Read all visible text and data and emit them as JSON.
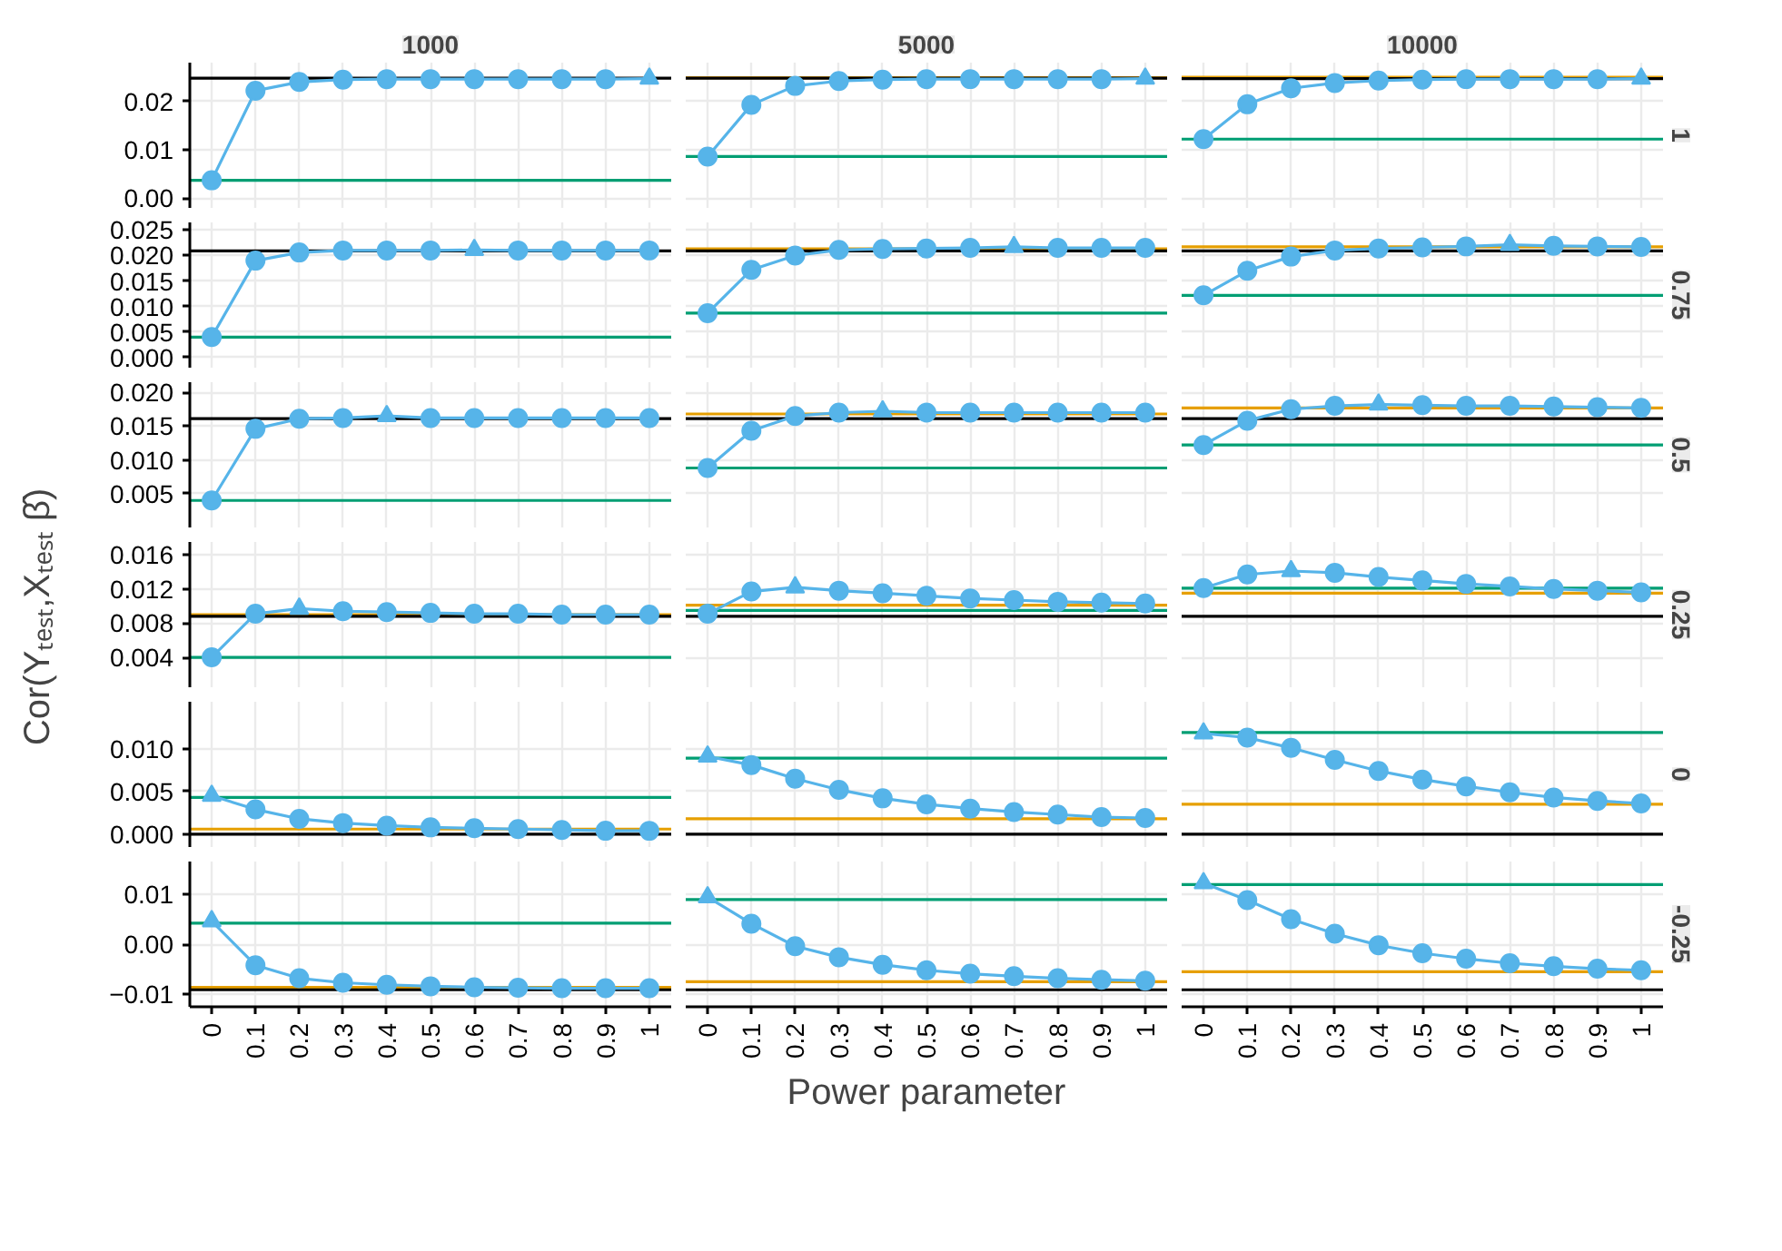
{
  "chart_data": [
    {
      "type": "line",
      "title": "1000",
      "x": [
        0,
        0.1,
        0.2,
        0.3,
        0.4,
        0.5,
        0.6,
        0.7,
        0.8,
        0.9,
        1
      ],
      "xlim": [
        -0.05,
        1.05
      ],
      "xticks": [
        0,
        0.1,
        0.2,
        0.3,
        0.4,
        0.5,
        0.6,
        0.7,
        0.8,
        0.9,
        1
      ],
      "ylim": [
        -0.002,
        0.028
      ],
      "yticks": [
        {
          "value": 0,
          "label": "0.00"
        },
        {
          "value": 0.01,
          "label": "0.01"
        },
        {
          "value": 0.02,
          "label": "0.02"
        }
      ],
      "grid": true,
      "tick_labels": "y",
      "series": [
        {
          "type": "line",
          "color": "#56b4e9",
          "values": [
            0.0037,
            0.0222,
            0.024,
            0.0245,
            0.0246,
            0.0246,
            0.0246,
            0.0246,
            0.0246,
            0.0246,
            0.0247
          ]
        },
        {
          "type": "scatter",
          "marker": "circle",
          "color": "#56b4e9",
          "values": [
            0.0037,
            0.0222,
            0.024,
            0.0245,
            0.0246,
            0.0246,
            0.0246,
            0.0246,
            0.0246,
            0.0246,
            null
          ]
        },
        {
          "type": "scatter",
          "marker": "triangle",
          "color": "#56b4e9",
          "x": [
            1
          ],
          "values": [
            0.0247
          ]
        }
      ],
      "ref_lines": [
        {
          "axis": "y",
          "value": 0.0248,
          "color": "#000000"
        },
        {
          "axis": "y",
          "value": 0.0037,
          "color": "#009e73"
        }
      ]
    },
    {
      "type": "line",
      "title": "5000",
      "x": [
        0,
        0.1,
        0.2,
        0.3,
        0.4,
        0.5,
        0.6,
        0.7,
        0.8,
        0.9,
        1
      ],
      "xlim": [
        -0.05,
        1.05
      ],
      "xticks": [
        0,
        0.1,
        0.2,
        0.3,
        0.4,
        0.5,
        0.6,
        0.7,
        0.8,
        0.9,
        1
      ],
      "ylim": [
        -0.002,
        0.028
      ],
      "yticks": [
        0,
        0.01,
        0.02
      ],
      "grid": true,
      "tick_labels": false,
      "series": [
        {
          "type": "line",
          "color": "#56b4e9",
          "values": [
            0.0086,
            0.0193,
            0.0232,
            0.0242,
            0.0245,
            0.0246,
            0.0246,
            0.0246,
            0.0246,
            0.0246,
            0.0247
          ]
        },
        {
          "type": "scatter",
          "marker": "circle",
          "color": "#56b4e9",
          "values": [
            0.0086,
            0.0193,
            0.0232,
            0.0242,
            0.0245,
            0.0246,
            0.0246,
            0.0246,
            0.0246,
            0.0246,
            null
          ]
        },
        {
          "type": "scatter",
          "marker": "triangle",
          "color": "#56b4e9",
          "x": [
            1
          ],
          "values": [
            0.0247
          ]
        }
      ],
      "ref_lines": [
        {
          "axis": "y",
          "value": 0.0249,
          "color": "#e69f00"
        },
        {
          "axis": "y",
          "value": 0.0248,
          "color": "#000000"
        },
        {
          "axis": "y",
          "value": 0.0086,
          "color": "#009e73"
        }
      ]
    },
    {
      "type": "line",
      "title": "10000",
      "y2label": "1",
      "x": [
        0,
        0.1,
        0.2,
        0.3,
        0.4,
        0.5,
        0.6,
        0.7,
        0.8,
        0.9,
        1
      ],
      "xlim": [
        -0.05,
        1.05
      ],
      "xticks": [
        0,
        0.1,
        0.2,
        0.3,
        0.4,
        0.5,
        0.6,
        0.7,
        0.8,
        0.9,
        1
      ],
      "ylim": [
        -0.002,
        0.028
      ],
      "yticks": [
        0,
        0.01,
        0.02
      ],
      "grid": true,
      "tick_labels": false,
      "series": [
        {
          "type": "line",
          "color": "#56b4e9",
          "values": [
            0.0122,
            0.0194,
            0.0227,
            0.0238,
            0.0243,
            0.0245,
            0.0246,
            0.0246,
            0.0246,
            0.0246,
            0.0247
          ]
        },
        {
          "type": "scatter",
          "marker": "circle",
          "color": "#56b4e9",
          "values": [
            0.0122,
            0.0194,
            0.0227,
            0.0238,
            0.0243,
            0.0245,
            0.0246,
            0.0246,
            0.0246,
            0.0246,
            null
          ]
        },
        {
          "type": "scatter",
          "marker": "triangle",
          "color": "#56b4e9",
          "x": [
            1
          ],
          "values": [
            0.0247
          ]
        }
      ],
      "ref_lines": [
        {
          "axis": "y",
          "value": 0.025,
          "color": "#e69f00"
        },
        {
          "axis": "y",
          "value": 0.0247,
          "color": "#000000"
        },
        {
          "axis": "y",
          "value": 0.0122,
          "color": "#009e73"
        }
      ]
    },
    {
      "type": "line",
      "x": [
        0,
        0.1,
        0.2,
        0.3,
        0.4,
        0.5,
        0.6,
        0.7,
        0.8,
        0.9,
        1
      ],
      "xlim": [
        -0.05,
        1.05
      ],
      "xticks": [
        0,
        0.1,
        0.2,
        0.3,
        0.4,
        0.5,
        0.6,
        0.7,
        0.8,
        0.9,
        1
      ],
      "ylim": [
        -0.002,
        0.0265
      ],
      "yticks": [
        {
          "value": 0,
          "label": "0.000"
        },
        0.005,
        {
          "value": 0.01,
          "label": "0.010"
        },
        0.015,
        {
          "value": 0.02,
          "label": "0.020"
        },
        0.025
      ],
      "grid": true,
      "tick_labels": "y",
      "series": [
        {
          "type": "line",
          "color": "#56b4e9",
          "values": [
            0.004,
            0.019,
            0.0206,
            0.021,
            0.021,
            0.021,
            0.0211,
            0.021,
            0.021,
            0.021,
            0.021
          ]
        },
        {
          "type": "scatter",
          "marker": "circle",
          "color": "#56b4e9",
          "values": [
            0.004,
            0.019,
            0.0206,
            0.021,
            0.021,
            0.021,
            null,
            0.021,
            0.021,
            0.021,
            0.021
          ]
        },
        {
          "type": "scatter",
          "marker": "triangle",
          "color": "#56b4e9",
          "x": [
            0.6
          ],
          "values": [
            0.0211
          ]
        }
      ],
      "ref_lines": [
        {
          "axis": "y",
          "value": 0.0209,
          "color": "#000000"
        },
        {
          "axis": "y",
          "value": 0.004,
          "color": "#009e73"
        }
      ]
    },
    {
      "type": "line",
      "x": [
        0,
        0.1,
        0.2,
        0.3,
        0.4,
        0.5,
        0.6,
        0.7,
        0.8,
        0.9,
        1
      ],
      "xlim": [
        -0.05,
        1.05
      ],
      "xticks": [
        0,
        0.1,
        0.2,
        0.3,
        0.4,
        0.5,
        0.6,
        0.7,
        0.8,
        0.9,
        1
      ],
      "ylim": [
        -0.002,
        0.0265
      ],
      "yticks": [
        0,
        0.005,
        0.01,
        0.015,
        0.02,
        0.025
      ],
      "grid": true,
      "tick_labels": false,
      "series": [
        {
          "type": "line",
          "color": "#56b4e9",
          "values": [
            0.0087,
            0.0172,
            0.02,
            0.0211,
            0.0213,
            0.0214,
            0.0215,
            0.0217,
            0.0215,
            0.0215,
            0.0215
          ]
        },
        {
          "type": "scatter",
          "marker": "circle",
          "color": "#56b4e9",
          "values": [
            0.0087,
            0.0172,
            0.02,
            0.0211,
            0.0213,
            0.0214,
            0.0215,
            null,
            0.0215,
            0.0215,
            0.0215
          ]
        },
        {
          "type": "scatter",
          "marker": "triangle",
          "color": "#56b4e9",
          "x": [
            0.7
          ],
          "values": [
            0.0217
          ]
        }
      ],
      "ref_lines": [
        {
          "axis": "y",
          "value": 0.0213,
          "color": "#e69f00"
        },
        {
          "axis": "y",
          "value": 0.0209,
          "color": "#000000"
        },
        {
          "axis": "y",
          "value": 0.0087,
          "color": "#009e73"
        }
      ]
    },
    {
      "type": "line",
      "y2label": "0.75",
      "x": [
        0,
        0.1,
        0.2,
        0.3,
        0.4,
        0.5,
        0.6,
        0.7,
        0.8,
        0.9,
        1
      ],
      "xlim": [
        -0.05,
        1.05
      ],
      "xticks": [
        0,
        0.1,
        0.2,
        0.3,
        0.4,
        0.5,
        0.6,
        0.7,
        0.8,
        0.9,
        1
      ],
      "ylim": [
        -0.002,
        0.0265
      ],
      "yticks": [
        0,
        0.005,
        0.01,
        0.015,
        0.02,
        0.025
      ],
      "grid": true,
      "tick_labels": false,
      "series": [
        {
          "type": "line",
          "color": "#56b4e9",
          "values": [
            0.0122,
            0.017,
            0.0198,
            0.021,
            0.0214,
            0.0216,
            0.0218,
            0.0221,
            0.0219,
            0.0218,
            0.0217
          ]
        },
        {
          "type": "scatter",
          "marker": "circle",
          "color": "#56b4e9",
          "values": [
            0.0122,
            0.017,
            0.0198,
            0.021,
            0.0214,
            0.0216,
            0.0218,
            null,
            0.0219,
            0.0218,
            0.0217
          ]
        },
        {
          "type": "scatter",
          "marker": "triangle",
          "color": "#56b4e9",
          "x": [
            0.7
          ],
          "values": [
            0.0221
          ]
        }
      ],
      "ref_lines": [
        {
          "axis": "y",
          "value": 0.0217,
          "color": "#e69f00"
        },
        {
          "axis": "y",
          "value": 0.0209,
          "color": "#000000"
        },
        {
          "axis": "y",
          "value": 0.0122,
          "color": "#009e73"
        }
      ]
    },
    {
      "type": "line",
      "x": [
        0,
        0.1,
        0.2,
        0.3,
        0.4,
        0.5,
        0.6,
        0.7,
        0.8,
        0.9,
        1
      ],
      "xlim": [
        -0.05,
        1.05
      ],
      "xticks": [
        0,
        0.1,
        0.2,
        0.3,
        0.4,
        0.5,
        0.6,
        0.7,
        0.8,
        0.9,
        1
      ],
      "ylim": [
        0.0,
        0.0215
      ],
      "yticks": [
        0.005,
        {
          "value": 0.01,
          "label": "0.010"
        },
        0.015,
        {
          "value": 0.02,
          "label": "0.020"
        }
      ],
      "grid": true,
      "tick_labels": "y",
      "series": [
        {
          "type": "line",
          "color": "#56b4e9",
          "values": [
            0.004,
            0.0146,
            0.0161,
            0.0162,
            0.0165,
            0.0162,
            0.0162,
            0.0162,
            0.0162,
            0.0162,
            0.0162
          ]
        },
        {
          "type": "scatter",
          "marker": "circle",
          "color": "#56b4e9",
          "values": [
            0.004,
            0.0146,
            0.0161,
            0.0162,
            null,
            0.0162,
            0.0162,
            0.0162,
            0.0162,
            0.0162,
            0.0162
          ]
        },
        {
          "type": "scatter",
          "marker": "triangle",
          "color": "#56b4e9",
          "x": [
            0.4
          ],
          "values": [
            0.0165
          ]
        }
      ],
      "ref_lines": [
        {
          "axis": "y",
          "value": 0.0161,
          "color": "#000000"
        },
        {
          "axis": "y",
          "value": 0.004,
          "color": "#009e73"
        }
      ]
    },
    {
      "type": "line",
      "x": [
        0,
        0.1,
        0.2,
        0.3,
        0.4,
        0.5,
        0.6,
        0.7,
        0.8,
        0.9,
        1
      ],
      "xlim": [
        -0.05,
        1.05
      ],
      "xticks": [
        0,
        0.1,
        0.2,
        0.3,
        0.4,
        0.5,
        0.6,
        0.7,
        0.8,
        0.9,
        1
      ],
      "ylim": [
        0.0,
        0.0215
      ],
      "yticks": [
        0.005,
        0.01,
        0.015,
        0.02
      ],
      "grid": true,
      "tick_labels": false,
      "series": [
        {
          "type": "line",
          "color": "#56b4e9",
          "values": [
            0.0088,
            0.0143,
            0.0165,
            0.017,
            0.0172,
            0.017,
            0.017,
            0.017,
            0.017,
            0.017,
            0.017
          ]
        },
        {
          "type": "scatter",
          "marker": "circle",
          "color": "#56b4e9",
          "values": [
            0.0088,
            0.0143,
            0.0165,
            0.017,
            null,
            0.017,
            0.017,
            0.017,
            0.017,
            0.017,
            0.017
          ]
        },
        {
          "type": "scatter",
          "marker": "triangle",
          "color": "#56b4e9",
          "x": [
            0.4
          ],
          "values": [
            0.0172
          ]
        }
      ],
      "ref_lines": [
        {
          "axis": "y",
          "value": 0.0168,
          "color": "#e69f00"
        },
        {
          "axis": "y",
          "value": 0.0161,
          "color": "#000000"
        },
        {
          "axis": "y",
          "value": 0.0088,
          "color": "#009e73"
        }
      ]
    },
    {
      "type": "line",
      "y2label": "0.5",
      "x": [
        0,
        0.1,
        0.2,
        0.3,
        0.4,
        0.5,
        0.6,
        0.7,
        0.8,
        0.9,
        1
      ],
      "xlim": [
        -0.05,
        1.05
      ],
      "xticks": [
        0,
        0.1,
        0.2,
        0.3,
        0.4,
        0.5,
        0.6,
        0.7,
        0.8,
        0.9,
        1
      ],
      "ylim": [
        0.0,
        0.0215
      ],
      "yticks": [
        0.005,
        0.01,
        0.015,
        0.02
      ],
      "grid": true,
      "tick_labels": false,
      "series": [
        {
          "type": "line",
          "color": "#56b4e9",
          "values": [
            0.0122,
            0.0158,
            0.0175,
            0.018,
            0.0182,
            0.0181,
            0.018,
            0.018,
            0.0179,
            0.0178,
            0.0177
          ]
        },
        {
          "type": "scatter",
          "marker": "circle",
          "color": "#56b4e9",
          "values": [
            0.0122,
            0.0158,
            0.0175,
            0.018,
            null,
            0.0181,
            0.018,
            0.018,
            0.0179,
            0.0178,
            0.0177
          ]
        },
        {
          "type": "scatter",
          "marker": "triangle",
          "color": "#56b4e9",
          "x": [
            0.4
          ],
          "values": [
            0.0182
          ]
        }
      ],
      "ref_lines": [
        {
          "axis": "y",
          "value": 0.0177,
          "color": "#e69f00"
        },
        {
          "axis": "y",
          "value": 0.0161,
          "color": "#000000"
        },
        {
          "axis": "y",
          "value": 0.0122,
          "color": "#009e73"
        }
      ]
    },
    {
      "type": "line",
      "ylabel": "Cor(Yₜₑₛₜ,Xₜₑₛₜ β̂)",
      "x": [
        0,
        0.1,
        0.2,
        0.3,
        0.4,
        0.5,
        0.6,
        0.7,
        0.8,
        0.9,
        1
      ],
      "xlim": [
        -0.05,
        1.05
      ],
      "xticks": [
        0,
        0.1,
        0.2,
        0.3,
        0.4,
        0.5,
        0.6,
        0.7,
        0.8,
        0.9,
        1
      ],
      "ylim": [
        0.0005,
        0.0175
      ],
      "yticks": [
        0.004,
        0.008,
        0.012,
        0.016
      ],
      "grid": true,
      "tick_labels": "y",
      "series": [
        {
          "type": "line",
          "color": "#56b4e9",
          "values": [
            0.004,
            0.0091,
            0.0097,
            0.0094,
            0.0093,
            0.0092,
            0.0091,
            0.0091,
            0.009,
            0.009,
            0.009
          ]
        },
        {
          "type": "scatter",
          "marker": "circle",
          "color": "#56b4e9",
          "values": [
            0.004,
            0.0091,
            null,
            0.0094,
            0.0093,
            0.0092,
            0.0091,
            0.0091,
            0.009,
            0.009,
            0.009
          ]
        },
        {
          "type": "scatter",
          "marker": "triangle",
          "color": "#56b4e9",
          "x": [
            0.2
          ],
          "values": [
            0.0097
          ]
        }
      ],
      "ref_lines": [
        {
          "axis": "y",
          "value": 0.009,
          "color": "#e69f00"
        },
        {
          "axis": "y",
          "value": 0.0088,
          "color": "#000000"
        },
        {
          "axis": "y",
          "value": 0.004,
          "color": "#009e73"
        }
      ]
    },
    {
      "type": "line",
      "x": [
        0,
        0.1,
        0.2,
        0.3,
        0.4,
        0.5,
        0.6,
        0.7,
        0.8,
        0.9,
        1
      ],
      "xlim": [
        -0.05,
        1.05
      ],
      "xticks": [
        0,
        0.1,
        0.2,
        0.3,
        0.4,
        0.5,
        0.6,
        0.7,
        0.8,
        0.9,
        1
      ],
      "ylim": [
        0.0005,
        0.0175
      ],
      "yticks": [
        0.004,
        0.008,
        0.012,
        0.016
      ],
      "grid": true,
      "tick_labels": false,
      "series": [
        {
          "type": "line",
          "color": "#56b4e9",
          "values": [
            0.0091,
            0.0117,
            0.0122,
            0.0118,
            0.0115,
            0.0112,
            0.0109,
            0.0107,
            0.0105,
            0.0104,
            0.0103
          ]
        },
        {
          "type": "scatter",
          "marker": "circle",
          "color": "#56b4e9",
          "values": [
            0.0091,
            0.0117,
            null,
            0.0118,
            0.0115,
            0.0112,
            0.0109,
            0.0107,
            0.0105,
            0.0104,
            0.0103
          ]
        },
        {
          "type": "scatter",
          "marker": "triangle",
          "color": "#56b4e9",
          "x": [
            0.2
          ],
          "values": [
            0.0122
          ]
        }
      ],
      "ref_lines": [
        {
          "axis": "y",
          "value": 0.0101,
          "color": "#e69f00"
        },
        {
          "axis": "y",
          "value": 0.0095,
          "color": "#009e73"
        },
        {
          "axis": "y",
          "value": 0.0088,
          "color": "#000000"
        }
      ]
    },
    {
      "type": "line",
      "y2label": "0.25",
      "x": [
        0,
        0.1,
        0.2,
        0.3,
        0.4,
        0.5,
        0.6,
        0.7,
        0.8,
        0.9,
        1
      ],
      "xlim": [
        -0.05,
        1.05
      ],
      "xticks": [
        0,
        0.1,
        0.2,
        0.3,
        0.4,
        0.5,
        0.6,
        0.7,
        0.8,
        0.9,
        1
      ],
      "ylim": [
        0.0005,
        0.0175
      ],
      "yticks": [
        0.004,
        0.008,
        0.012,
        0.016
      ],
      "grid": true,
      "tick_labels": false,
      "series": [
        {
          "type": "line",
          "color": "#56b4e9",
          "values": [
            0.0121,
            0.0137,
            0.0141,
            0.0139,
            0.0134,
            0.013,
            0.0126,
            0.0123,
            0.012,
            0.0118,
            0.0116
          ]
        },
        {
          "type": "scatter",
          "marker": "circle",
          "color": "#56b4e9",
          "values": [
            0.0121,
            0.0137,
            null,
            0.0139,
            0.0134,
            0.013,
            0.0126,
            0.0123,
            0.012,
            0.0118,
            0.0116
          ]
        },
        {
          "type": "scatter",
          "marker": "triangle",
          "color": "#56b4e9",
          "x": [
            0.2
          ],
          "values": [
            0.0141
          ]
        }
      ],
      "ref_lines": [
        {
          "axis": "y",
          "value": 0.0121,
          "color": "#009e73"
        },
        {
          "axis": "y",
          "value": 0.0115,
          "color": "#e69f00"
        },
        {
          "axis": "y",
          "value": 0.0088,
          "color": "#000000"
        }
      ]
    },
    {
      "type": "line",
      "x": [
        0,
        0.1,
        0.2,
        0.3,
        0.4,
        0.5,
        0.6,
        0.7,
        0.8,
        0.9,
        1
      ],
      "xlim": [
        -0.05,
        1.05
      ],
      "xticks": [
        0,
        0.1,
        0.2,
        0.3,
        0.4,
        0.5,
        0.6,
        0.7,
        0.8,
        0.9,
        1
      ],
      "ylim": [
        -0.0015,
        0.0155
      ],
      "yticks": [
        {
          "value": 0,
          "label": "0.000"
        },
        0.005,
        {
          "value": 0.01,
          "label": "0.010"
        }
      ],
      "grid": true,
      "tick_labels": "y",
      "series": [
        {
          "type": "line",
          "color": "#56b4e9",
          "values": [
            0.0045,
            0.0029,
            0.0018,
            0.0013,
            0.001,
            0.0008,
            0.0007,
            0.0006,
            0.0005,
            0.0004,
            0.0004
          ]
        },
        {
          "type": "scatter",
          "marker": "circle",
          "color": "#56b4e9",
          "values": [
            null,
            0.0029,
            0.0018,
            0.0013,
            0.001,
            0.0008,
            0.0007,
            0.0006,
            0.0005,
            0.0004,
            0.0004
          ]
        },
        {
          "type": "scatter",
          "marker": "triangle",
          "color": "#56b4e9",
          "x": [
            0
          ],
          "values": [
            0.0045
          ]
        }
      ],
      "ref_lines": [
        {
          "axis": "y",
          "value": 0.0043,
          "color": "#009e73"
        },
        {
          "axis": "y",
          "value": 0.0006,
          "color": "#e69f00"
        },
        {
          "axis": "y",
          "value": 0,
          "color": "#000000"
        }
      ]
    },
    {
      "type": "line",
      "x": [
        0,
        0.1,
        0.2,
        0.3,
        0.4,
        0.5,
        0.6,
        0.7,
        0.8,
        0.9,
        1
      ],
      "xlim": [
        -0.05,
        1.05
      ],
      "xticks": [
        0,
        0.1,
        0.2,
        0.3,
        0.4,
        0.5,
        0.6,
        0.7,
        0.8,
        0.9,
        1
      ],
      "ylim": [
        -0.0015,
        0.0155
      ],
      "yticks": [
        0,
        0.005,
        0.01
      ],
      "grid": true,
      "tick_labels": false,
      "series": [
        {
          "type": "line",
          "color": "#56b4e9",
          "values": [
            0.0091,
            0.0081,
            0.0065,
            0.0052,
            0.0042,
            0.0035,
            0.003,
            0.0026,
            0.0023,
            0.002,
            0.0019
          ]
        },
        {
          "type": "scatter",
          "marker": "circle",
          "color": "#56b4e9",
          "values": [
            null,
            0.0081,
            0.0065,
            0.0052,
            0.0042,
            0.0035,
            0.003,
            0.0026,
            0.0023,
            0.002,
            0.0019
          ]
        },
        {
          "type": "scatter",
          "marker": "triangle",
          "color": "#56b4e9",
          "x": [
            0
          ],
          "values": [
            0.0091
          ]
        }
      ],
      "ref_lines": [
        {
          "axis": "y",
          "value": 0.0089,
          "color": "#009e73"
        },
        {
          "axis": "y",
          "value": 0.0018,
          "color": "#e69f00"
        },
        {
          "axis": "y",
          "value": 0,
          "color": "#000000"
        }
      ]
    },
    {
      "type": "line",
      "y2label": "0",
      "x": [
        0,
        0.1,
        0.2,
        0.3,
        0.4,
        0.5,
        0.6,
        0.7,
        0.8,
        0.9,
        1
      ],
      "xlim": [
        -0.05,
        1.05
      ],
      "xticks": [
        0,
        0.1,
        0.2,
        0.3,
        0.4,
        0.5,
        0.6,
        0.7,
        0.8,
        0.9,
        1
      ],
      "ylim": [
        -0.0015,
        0.0155
      ],
      "yticks": [
        0,
        0.005,
        0.01
      ],
      "grid": true,
      "tick_labels": false,
      "series": [
        {
          "type": "line",
          "color": "#56b4e9",
          "values": [
            0.0118,
            0.0113,
            0.0101,
            0.0087,
            0.0074,
            0.0064,
            0.0056,
            0.0049,
            0.0043,
            0.0039,
            0.0036
          ]
        },
        {
          "type": "scatter",
          "marker": "circle",
          "color": "#56b4e9",
          "values": [
            null,
            0.0113,
            0.0101,
            0.0087,
            0.0074,
            0.0064,
            0.0056,
            0.0049,
            0.0043,
            0.0039,
            0.0036
          ]
        },
        {
          "type": "scatter",
          "marker": "triangle",
          "color": "#56b4e9",
          "x": [
            0
          ],
          "values": [
            0.0118
          ]
        }
      ],
      "ref_lines": [
        {
          "axis": "y",
          "value": 0.0119,
          "color": "#009e73"
        },
        {
          "axis": "y",
          "value": 0.0035,
          "color": "#e69f00"
        },
        {
          "axis": "y",
          "value": 0,
          "color": "#000000"
        }
      ]
    },
    {
      "type": "line",
      "x": [
        0,
        0.1,
        0.2,
        0.3,
        0.4,
        0.5,
        0.6,
        0.7,
        0.8,
        0.9,
        1
      ],
      "xlim": [
        -0.05,
        1.05
      ],
      "xticks": [
        0,
        0.1,
        0.2,
        0.3,
        0.4,
        0.5,
        0.6,
        0.7,
        0.8,
        0.9,
        1
      ],
      "ylim": [
        -0.0125,
        0.0165
      ],
      "yticks": [
        -0.01,
        {
          "value": 0,
          "label": "0.00"
        },
        0.01
      ],
      "grid": true,
      "series": [
        {
          "type": "line",
          "color": "#56b4e9",
          "values": [
            0.0046,
            -0.0042,
            -0.0068,
            -0.0077,
            -0.0081,
            -0.0084,
            -0.0086,
            -0.0087,
            -0.0088,
            -0.0088,
            -0.0088
          ]
        },
        {
          "type": "scatter",
          "marker": "circle",
          "color": "#56b4e9",
          "values": [
            null,
            -0.0042,
            -0.0068,
            -0.0077,
            -0.0081,
            -0.0084,
            -0.0086,
            -0.0087,
            -0.0088,
            -0.0088,
            -0.0088
          ]
        },
        {
          "type": "scatter",
          "marker": "triangle",
          "color": "#56b4e9",
          "x": [
            0
          ],
          "values": [
            0.0046
          ]
        }
      ],
      "ref_lines": [
        {
          "axis": "y",
          "value": 0.0042,
          "color": "#009e73"
        },
        {
          "axis": "y",
          "value": -0.0086,
          "color": "#e69f00"
        },
        {
          "axis": "y",
          "value": -0.0091,
          "color": "#000000"
        }
      ]
    },
    {
      "type": "line",
      "xlabel": "Power parameter",
      "x": [
        0,
        0.1,
        0.2,
        0.3,
        0.4,
        0.5,
        0.6,
        0.7,
        0.8,
        0.9,
        1
      ],
      "xlim": [
        -0.05,
        1.05
      ],
      "xticks": [
        0,
        0.1,
        0.2,
        0.3,
        0.4,
        0.5,
        0.6,
        0.7,
        0.8,
        0.9,
        1
      ],
      "ylim": [
        -0.0125,
        0.0165
      ],
      "yticks": [
        -0.01,
        0,
        0.01
      ],
      "grid": true,
      "tick_labels": "x",
      "series": [
        {
          "type": "line",
          "color": "#56b4e9",
          "values": [
            0.0094,
            0.0041,
            -0.0004,
            -0.0026,
            -0.0041,
            -0.0052,
            -0.0059,
            -0.0064,
            -0.0068,
            -0.0071,
            -0.0073
          ]
        },
        {
          "type": "scatter",
          "marker": "circle",
          "color": "#56b4e9",
          "values": [
            null,
            0.0041,
            -0.0004,
            -0.0026,
            -0.0041,
            -0.0052,
            -0.0059,
            -0.0064,
            -0.0068,
            -0.0071,
            -0.0073
          ]
        },
        {
          "type": "scatter",
          "marker": "triangle",
          "color": "#56b4e9",
          "x": [
            0
          ],
          "values": [
            0.0094
          ]
        }
      ],
      "ref_lines": [
        {
          "axis": "y",
          "value": 0.0089,
          "color": "#009e73"
        },
        {
          "axis": "y",
          "value": -0.0075,
          "color": "#e69f00"
        },
        {
          "axis": "y",
          "value": -0.0091,
          "color": "#000000"
        }
      ]
    },
    {
      "type": "line",
      "y2label": "-0.25",
      "x": [
        0,
        0.1,
        0.2,
        0.3,
        0.4,
        0.5,
        0.6,
        0.7,
        0.8,
        0.9,
        1
      ],
      "xlim": [
        -0.05,
        1.05
      ],
      "xticks": [
        0,
        0.1,
        0.2,
        0.3,
        0.4,
        0.5,
        0.6,
        0.7,
        0.8,
        0.9,
        1
      ],
      "ylim": [
        -0.0125,
        0.0165
      ],
      "yticks": [
        -0.01,
        0,
        0.01
      ],
      "grid": true,
      "tick_labels": "x",
      "series": [
        {
          "type": "line",
          "color": "#56b4e9",
          "values": [
            0.0122,
            0.0088,
            0.005,
            0.0021,
            -0.0002,
            -0.0018,
            -0.0029,
            -0.0038,
            -0.0044,
            -0.0049,
            -0.0052
          ]
        },
        {
          "type": "scatter",
          "marker": "circle",
          "color": "#56b4e9",
          "values": [
            null,
            0.0088,
            0.005,
            0.0021,
            -0.0002,
            -0.0018,
            -0.0029,
            -0.0038,
            -0.0044,
            -0.0049,
            -0.0052
          ]
        },
        {
          "type": "scatter",
          "marker": "triangle",
          "color": "#56b4e9",
          "x": [
            0
          ],
          "values": [
            0.0122
          ]
        }
      ],
      "ref_lines": [
        {
          "axis": "y",
          "value": 0.0119,
          "color": "#009e73"
        },
        {
          "axis": "y",
          "value": -0.0055,
          "color": "#e69f00"
        },
        {
          "axis": "y",
          "value": -0.0091,
          "color": "#000000"
        }
      ]
    }
  ]
}
